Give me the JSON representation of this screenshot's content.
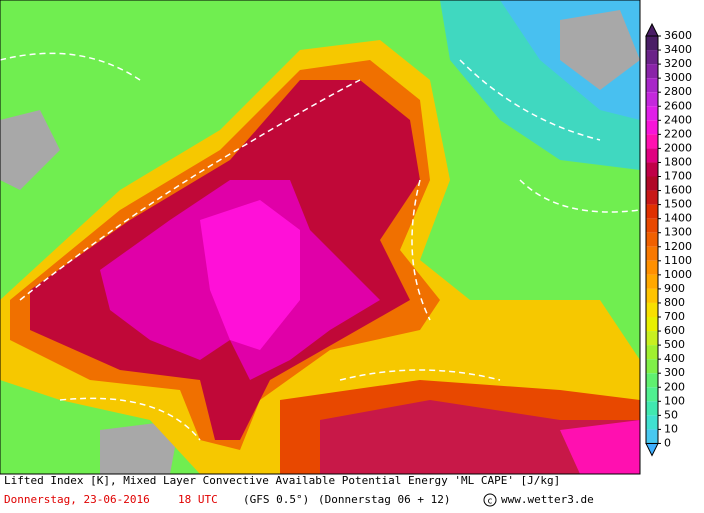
{
  "map": {
    "caption": "Lifted Index [K], Mixed Layer Convective Available Potential Energy 'ML CAPE' [J/kg]",
    "date": "Donnerstag, 23-06-2016",
    "time": "18 UTC",
    "model": "(GFS 0.5°)",
    "run": "(Donnerstag 06 + 12)",
    "credit": "www.wetter3.de",
    "colorbar": {
      "ticks": [
        3600,
        3400,
        3200,
        3000,
        2800,
        2600,
        2400,
        2200,
        2000,
        1800,
        1700,
        1600,
        1500,
        1400,
        1300,
        1200,
        1100,
        1000,
        900,
        800,
        700,
        600,
        500,
        400,
        300,
        200,
        100,
        50,
        10,
        0
      ],
      "colors": [
        "#4a1e66",
        "#6a2288",
        "#8a24a8",
        "#a826c8",
        "#c428dc",
        "#e020e8",
        "#f814d8",
        "#ff10b0",
        "#e00080",
        "#c00048",
        "#b00828",
        "#c81818",
        "#e03000",
        "#e84800",
        "#f06000",
        "#f87800",
        "#ff9000",
        "#ffa800",
        "#ffc400",
        "#f8e000",
        "#e8f000",
        "#c8f020",
        "#a0f030",
        "#80f048",
        "#60f070",
        "#50f090",
        "#40e8b0",
        "#40e0d0",
        "#48c8f0",
        "#40b0ff"
      ]
    }
  }
}
